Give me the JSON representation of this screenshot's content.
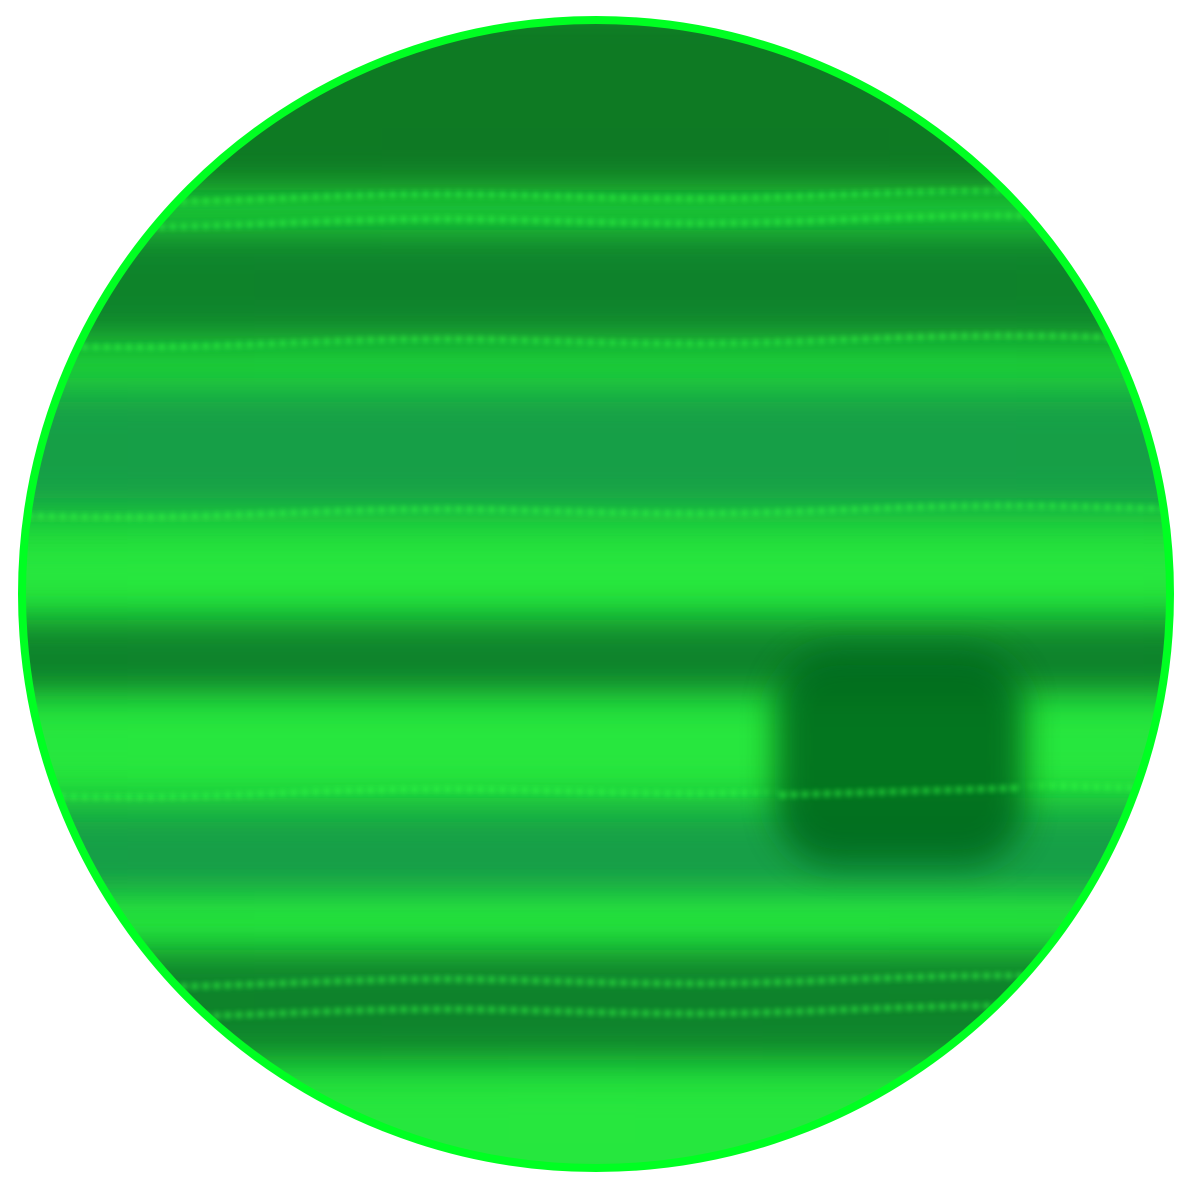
{
  "colors": {
    "background": "#ffffff",
    "rim": "#00ff22",
    "base": "#1fd23a",
    "band_dark": "#0a7a2a",
    "band_deep": "#087024",
    "band_teal": "#159a48",
    "band_light": "#2aee40",
    "streak": "#33ff44",
    "storm": "#066b1a"
  },
  "bands": [
    {
      "role": "cap",
      "tone": "band_deep"
    },
    {
      "role": "belt",
      "tone": "band_dark"
    },
    {
      "role": "belt",
      "tone": "band_teal"
    },
    {
      "role": "zone",
      "tone": "band_light"
    },
    {
      "role": "belt",
      "tone": "band_dark"
    },
    {
      "role": "zone",
      "tone": "band_light"
    },
    {
      "role": "belt",
      "tone": "band_teal"
    },
    {
      "role": "zone",
      "tone": "band_light"
    },
    {
      "role": "belt",
      "tone": "band_dark"
    },
    {
      "role": "zone",
      "tone": "band_light"
    }
  ],
  "icons": {
    "planet": "green-banded-planet-icon",
    "storm": "dark-storm-spot-icon"
  }
}
